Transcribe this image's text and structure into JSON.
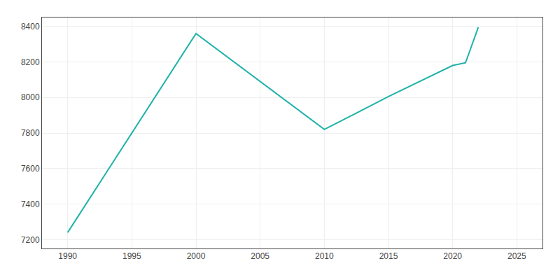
{
  "chart_data": {
    "type": "line",
    "x": [
      1990,
      2000,
      2010,
      2015,
      2020,
      2021,
      2022
    ],
    "values": [
      7240,
      8360,
      7820,
      8005,
      8180,
      8195,
      8395
    ],
    "color": "#20b2aa",
    "xlim": [
      1988,
      2027
    ],
    "ylim": [
      7150,
      8450
    ],
    "xticks": [
      1990,
      1995,
      2000,
      2005,
      2010,
      2015,
      2020,
      2025
    ],
    "yticks": [
      7200,
      7400,
      7600,
      7800,
      8000,
      8200,
      8400
    ],
    "grid": true
  }
}
